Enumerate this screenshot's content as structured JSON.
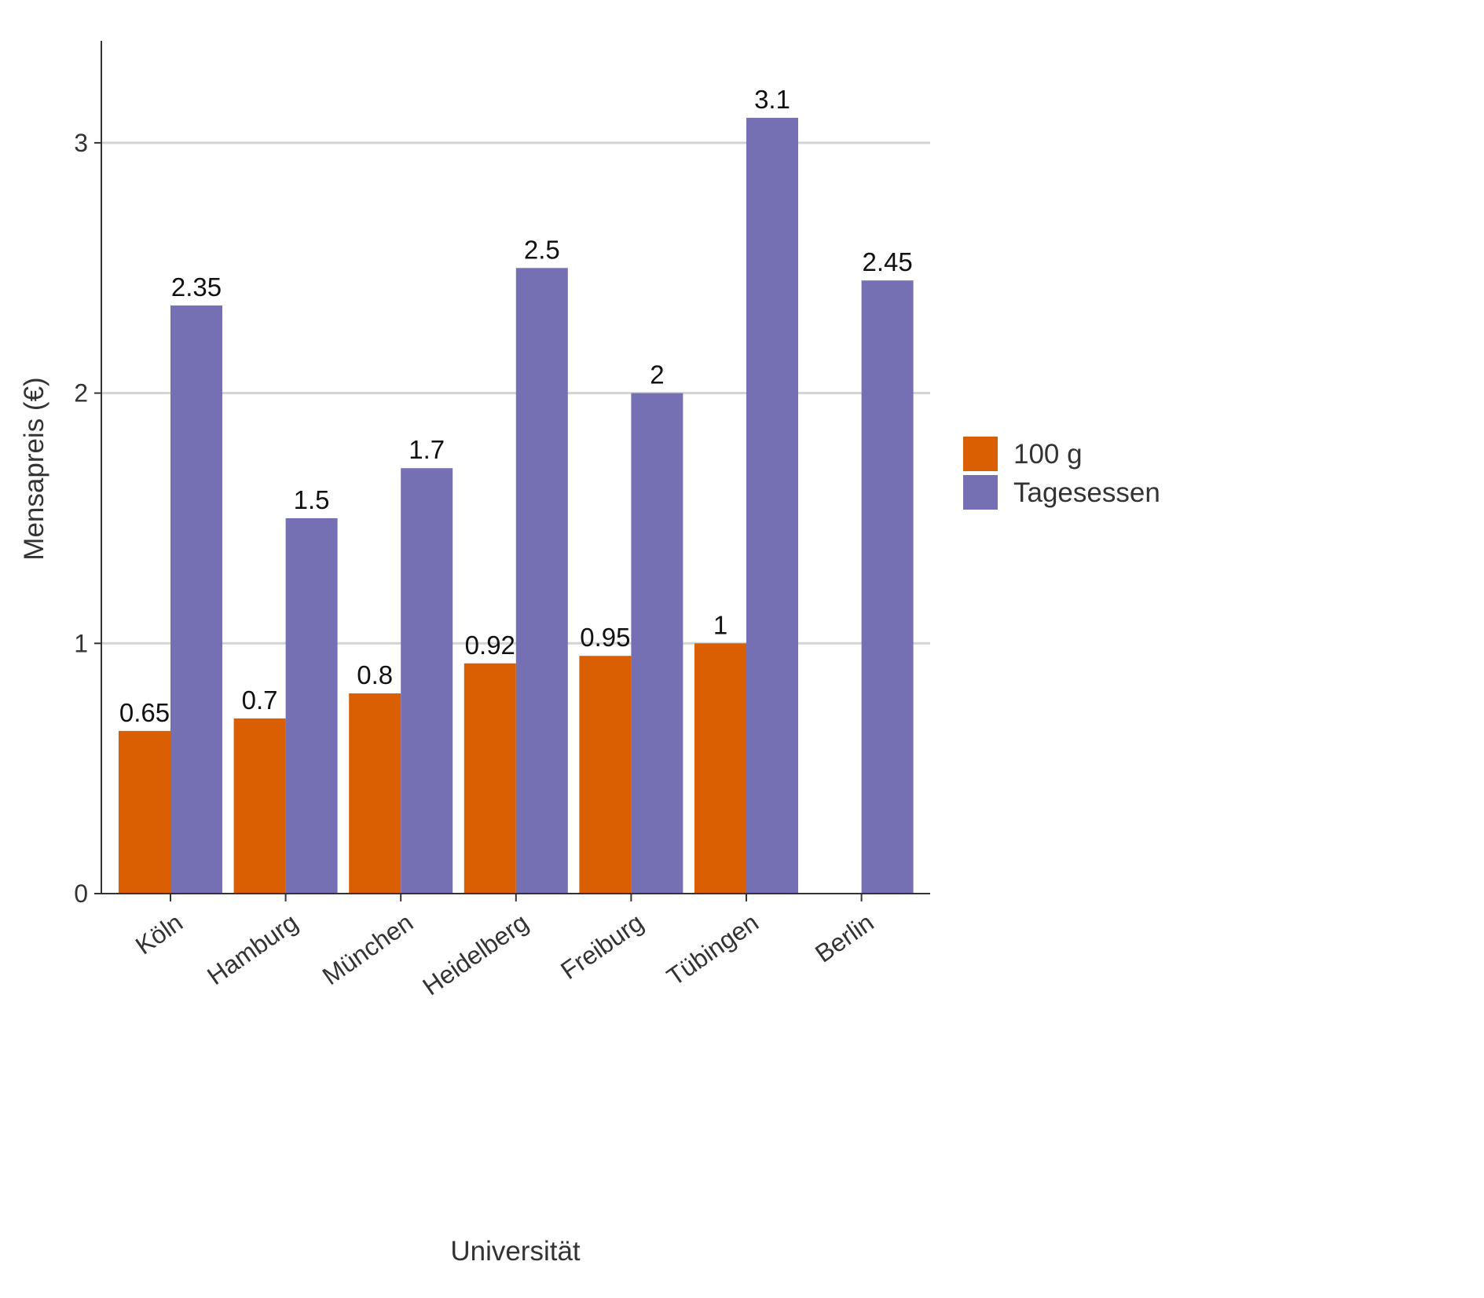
{
  "chart_data": {
    "type": "bar",
    "title": "",
    "xlabel": "Universität",
    "ylabel": "Mensapreis (€)",
    "categories": [
      "Köln",
      "Hamburg",
      "München",
      "Heidelberg",
      "Freiburg",
      "Tübingen",
      "Berlin"
    ],
    "series": [
      {
        "name": "100 g",
        "color": "#d95f02",
        "values": [
          0.65,
          0.7,
          0.8,
          0.92,
          0.95,
          1,
          null
        ]
      },
      {
        "name": "Tagesessen",
        "color": "#7570b3",
        "values": [
          2.35,
          1.5,
          1.7,
          2.5,
          2,
          3.1,
          2.45
        ]
      }
    ],
    "data_labels": [
      [
        "0.65",
        "0.7",
        "0.8",
        "0.92",
        "0.95",
        "1",
        null
      ],
      [
        "2.35",
        "1.5",
        "1.7",
        "2.5",
        "2",
        "3.1",
        "2.45"
      ]
    ],
    "ylim": [
      0,
      3.41
    ],
    "yticks": [
      0,
      1,
      2,
      3
    ],
    "ytick_labels": [
      "0",
      "1",
      "2",
      "3"
    ],
    "grid": "horizontal-major",
    "legend_position": "right",
    "colors": {
      "gridline": "#d3d3d3",
      "axis": "#333333"
    }
  }
}
